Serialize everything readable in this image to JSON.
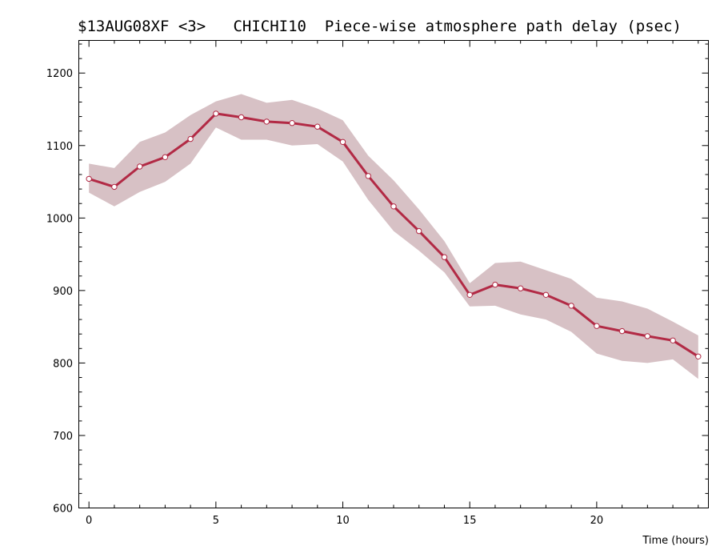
{
  "chart_data": {
    "type": "line",
    "title": "$13AUG08XF <3>   CHICHI10  Piece-wise atmosphere path delay (psec)",
    "xlabel": "Time (hours)",
    "ylabel": "",
    "xlim": [
      -0.4,
      24.4
    ],
    "ylim": [
      600,
      1245
    ],
    "x_ticks": [
      0,
      5,
      10,
      15,
      20
    ],
    "y_ticks": [
      600,
      700,
      800,
      900,
      1000,
      1100,
      1200
    ],
    "x_minor_step": 1,
    "y_minor_step": 20,
    "grid": false,
    "colors": {
      "line": "#b22a45",
      "band": "#d7c1c5",
      "marker_fill": "#ffffff"
    },
    "series": [
      {
        "x": [
          0,
          1,
          2,
          3,
          4,
          5,
          6,
          7,
          8,
          9,
          10,
          11,
          12,
          13,
          14,
          15,
          16,
          17,
          18,
          19,
          20,
          21,
          22,
          23,
          24
        ],
        "values": [
          1054,
          1043,
          1071,
          1084,
          1109,
          1144,
          1139,
          1133,
          1131,
          1126,
          1105,
          1058,
          1016,
          982,
          946,
          894,
          908,
          903,
          894,
          879,
          851,
          844,
          837,
          831,
          809
        ],
        "upper": [
          1075,
          1069,
          1105,
          1118,
          1142,
          1161,
          1171,
          1159,
          1163,
          1151,
          1135,
          1086,
          1052,
          1012,
          968,
          910,
          938,
          940,
          928,
          916,
          890,
          885,
          875,
          857,
          838
        ],
        "lower": [
          1035,
          1016,
          1036,
          1050,
          1075,
          1125,
          1108,
          1108,
          1100,
          1102,
          1078,
          1025,
          982,
          955,
          925,
          878,
          879,
          867,
          860,
          843,
          813,
          803,
          800,
          805,
          778
        ]
      }
    ]
  }
}
